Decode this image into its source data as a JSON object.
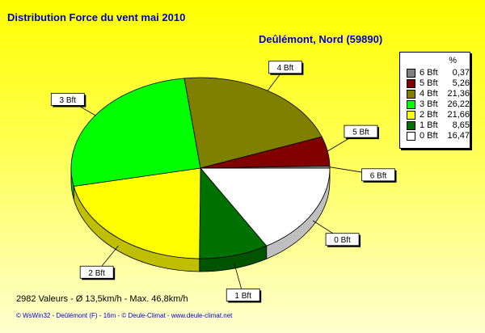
{
  "title": "Distribution Force du vent  mai 2010",
  "subtitle": "Deûlémont, Nord (59890)",
  "legend": {
    "unit_label": "%"
  },
  "footer": {
    "stats": "2982 Valeurs   -   Ø 13,5km/h  -  Max. 46,8km/h",
    "credits": "© WsWin32  -  Deûlémont (F) - 16m  -  © Deule-Climat - www.deule-climat.net"
  },
  "colors": {
    "title": "#0000cc",
    "background_top": "#ffff00",
    "background_bottom": "#ffffd0"
  },
  "chart_data": {
    "type": "pie",
    "title": "Distribution Force du vent  mai 2010",
    "subtitle": "Deûlémont, Nord (59890)",
    "unit": "%",
    "slices": [
      {
        "label": "0 Bft",
        "legend_text": "0 Bft",
        "value": 16.47,
        "value_text": "16,47",
        "color": "#ffffff"
      },
      {
        "label": "1 Bft",
        "legend_text": "1 Bft",
        "value": 8.65,
        "value_text": "8,65",
        "color": "#007000"
      },
      {
        "label": "2 Bft",
        "legend_text": "2 Bft",
        "value": 21.66,
        "value_text": "21,66",
        "color": "#ffff00"
      },
      {
        "label": "3 Bft",
        "legend_text": "3 Bft",
        "value": 26.22,
        "value_text": "26,22",
        "color": "#00ff00"
      },
      {
        "label": "4 Bft",
        "legend_text": "4 Bft",
        "value": 21.36,
        "value_text": "21,36",
        "color": "#808000"
      },
      {
        "label": "5 Bft",
        "legend_text": "5 Bft",
        "value": 5.26,
        "value_text": "5,26",
        "color": "#800000"
      },
      {
        "label": "6 Bft",
        "legend_text": "6 Bft",
        "value": 0.37,
        "value_text": "0,37",
        "color": "#808080"
      }
    ],
    "legend_order": [
      "6 Bft",
      "5 Bft",
      "4 Bft",
      "3 Bft",
      "2 Bft",
      "1 Bft",
      "0 Bft"
    ],
    "legend_placement": "right"
  }
}
